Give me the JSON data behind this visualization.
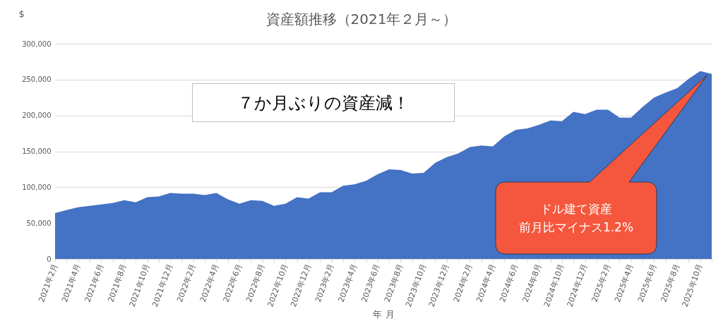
{
  "chart_data": {
    "type": "area",
    "title": "資産額推移（2021年２月～）",
    "xlabel": "年 月",
    "ylabel": "$",
    "categories": [
      "2021年2月",
      null,
      "2021年4月",
      null,
      "2021年6月",
      null,
      "2021年8月",
      null,
      "2021年10月",
      null,
      "2021年12月",
      null,
      "2022年2月",
      null,
      "2022年4月",
      null,
      "2022年6月",
      null,
      "2022年8月",
      null,
      "2022年10月",
      null,
      "2022年12月",
      null,
      "2023年2月",
      null,
      "2023年4月",
      null,
      "2023年6月",
      null,
      "2023年8月",
      null,
      "2023年10月",
      null,
      "2023年12月",
      null,
      "2024年2月",
      null,
      "2024年4月",
      null,
      "2024年6月",
      null,
      "2024年8月",
      null,
      "2024年10月",
      null,
      "2024年12月",
      null,
      "2025年2月",
      null,
      "2025年4月",
      null,
      "2025年6月",
      null,
      "2025年8月",
      null,
      "2025年10月",
      null
    ],
    "series": [
      {
        "color": "#4472c4",
        "values": [
          64000,
          68000,
          72000,
          74000,
          76000,
          78000,
          82000,
          79000,
          86000,
          87000,
          92000,
          91000,
          91000,
          89000,
          92000,
          83000,
          77000,
          82000,
          81000,
          74000,
          77000,
          86000,
          84000,
          93000,
          93000,
          102000,
          104000,
          109000,
          118000,
          125000,
          124000,
          119000,
          120000,
          134000,
          142000,
          147000,
          156000,
          158000,
          157000,
          171000,
          180000,
          182000,
          187000,
          193000,
          192000,
          205000,
          202000,
          208000,
          208000,
          197000,
          197000,
          212000,
          225000,
          232000,
          238000,
          251000,
          262000,
          258000
        ]
      }
    ],
    "ylim": [
      0,
      300000
    ],
    "yticks": [
      0,
      {
        "value": 50000,
        "label": "50,000"
      },
      {
        "value": 100000,
        "label": "100,000"
      },
      {
        "value": 150000,
        "label": "150,000"
      },
      {
        "value": 200000,
        "label": "200,000"
      },
      {
        "value": 250000,
        "label": "250,000"
      },
      {
        "value": 300000,
        "label": "300,000"
      }
    ],
    "grid": "y",
    "annotations": [
      "７か月ぶりの資産減！",
      "ドル建て資産",
      "前月比マイナス1.2%"
    ]
  }
}
